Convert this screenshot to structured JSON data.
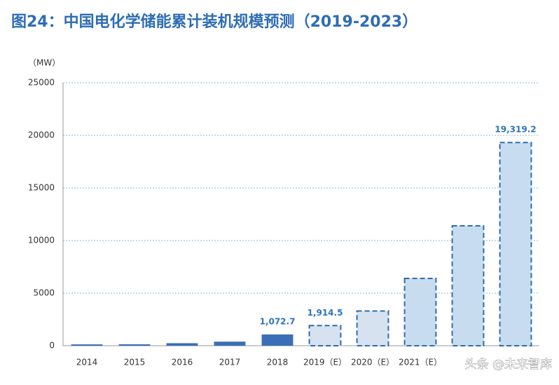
{
  "chart_data": {
    "type": "bar",
    "title": "图24：中国电化学储能累计装机规模预测（2019-2023）",
    "y_label": "（MW）",
    "categories": [
      "2014",
      "2015",
      "2016",
      "2017",
      "2018",
      "2019（E）",
      "2020（E）",
      "2021（E）",
      null,
      null
    ],
    "values": [
      130,
      140,
      240,
      390,
      1072.7,
      1914.5,
      3300,
      6400,
      11400,
      19319.2
    ],
    "value_labels": [
      null,
      null,
      null,
      null,
      "1,072.7",
      "1,914.5",
      null,
      null,
      null,
      "19,319.2"
    ],
    "colors": [
      "#3a6fb7",
      "#3a6fb7",
      "#3a6fb7",
      "#3a6fb7",
      "#3a6fb7",
      "#d6e2f0",
      "#d6e2f0",
      "#c7ddef",
      "#c7ddef",
      "#c7ddef"
    ],
    "dashed": [
      false,
      false,
      false,
      false,
      false,
      true,
      true,
      true,
      true,
      true
    ],
    "ylim": [
      0,
      25000
    ],
    "yticks": [
      0,
      5000,
      10000,
      15000,
      20000,
      25000
    ],
    "grid": true,
    "watermark": "头条 @未来智库"
  }
}
